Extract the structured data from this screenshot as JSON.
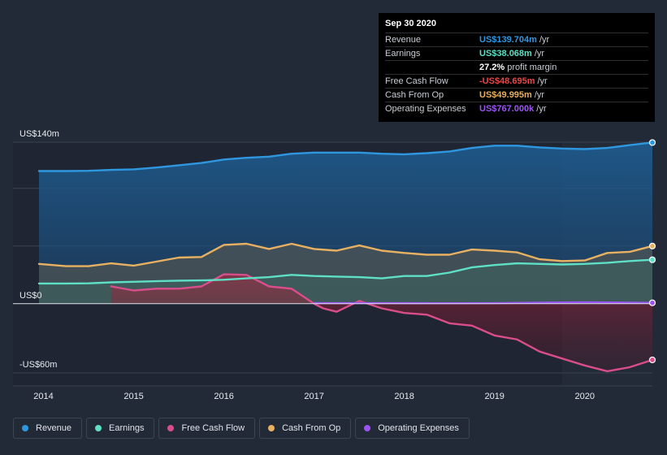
{
  "colors": {
    "revenue": "#2f97e0",
    "earnings": "#5ee0c6",
    "fcf": "#d94d8a",
    "cfo": "#e8b061",
    "opex": "#9a55f0"
  },
  "tooltip": {
    "date": "Sep 30 2020",
    "rows": [
      {
        "name": "Revenue",
        "value": "US$139.704m",
        "unit": "/yr",
        "color": "#2f97e0"
      },
      {
        "name": "Earnings",
        "value": "US$38.068m",
        "unit": "/yr",
        "color": "#5ee0c6"
      },
      {
        "name": "",
        "value": "27.2%",
        "unit": "profit margin",
        "color": "#ffffff"
      },
      {
        "name": "Free Cash Flow",
        "value": "-US$48.695m",
        "unit": "/yr",
        "color": "#ee4444"
      },
      {
        "name": "Cash From Op",
        "value": "US$49.995m",
        "unit": "/yr",
        "color": "#e8b061"
      },
      {
        "name": "Operating Expenses",
        "value": "US$767.000k",
        "unit": "/yr",
        "color": "#9a55f0"
      }
    ]
  },
  "legend": [
    {
      "label": "Revenue",
      "color": "#2f97e0"
    },
    {
      "label": "Earnings",
      "color": "#5ee0c6"
    },
    {
      "label": "Free Cash Flow",
      "color": "#d94d8a"
    },
    {
      "label": "Cash From Op",
      "color": "#e8b061"
    },
    {
      "label": "Operating Expenses",
      "color": "#9a55f0"
    }
  ],
  "chart_data": {
    "type": "area",
    "title": "",
    "xlabel": "",
    "ylabel": "",
    "xlim": [
      2013.95,
      2020.75
    ],
    "ylim": [
      -60,
      140
    ],
    "forecast_start": 2019.75,
    "y_tick_labels": [
      {
        "value": 140,
        "label": "US$140m"
      },
      {
        "value": 0,
        "label": "US$0"
      },
      {
        "value": -60,
        "label": "-US$60m"
      }
    ],
    "x_tick_labels": [
      {
        "value": 2014,
        "label": "2014"
      },
      {
        "value": 2015,
        "label": "2015"
      },
      {
        "value": 2016,
        "label": "2016"
      },
      {
        "value": 2017,
        "label": "2017"
      },
      {
        "value": 2018,
        "label": "2018"
      },
      {
        "value": 2019,
        "label": "2019"
      },
      {
        "value": 2020,
        "label": "2020"
      }
    ],
    "series": [
      {
        "name": "Revenue",
        "key": "revenue",
        "points": [
          [
            2013.95,
            115
          ],
          [
            2014.25,
            115
          ],
          [
            2014.5,
            115.2
          ],
          [
            2014.75,
            116
          ],
          [
            2015,
            116.5
          ],
          [
            2015.25,
            118
          ],
          [
            2015.5,
            120
          ],
          [
            2015.75,
            122
          ],
          [
            2016,
            125
          ],
          [
            2016.25,
            126.5
          ],
          [
            2016.5,
            127.5
          ],
          [
            2016.75,
            130
          ],
          [
            2017,
            131
          ],
          [
            2017.25,
            131
          ],
          [
            2017.5,
            131
          ],
          [
            2017.75,
            130
          ],
          [
            2018,
            129.5
          ],
          [
            2018.25,
            130.5
          ],
          [
            2018.5,
            132
          ],
          [
            2018.75,
            135
          ],
          [
            2019,
            137
          ],
          [
            2019.25,
            137
          ],
          [
            2019.5,
            135.5
          ],
          [
            2019.75,
            134.5
          ],
          [
            2020,
            134
          ],
          [
            2020.25,
            135
          ],
          [
            2020.5,
            137.5
          ],
          [
            2020.75,
            139.7
          ]
        ]
      },
      {
        "name": "Earnings",
        "key": "earnings",
        "points": [
          [
            2013.95,
            17.5
          ],
          [
            2014.25,
            17.5
          ],
          [
            2014.5,
            17.7
          ],
          [
            2014.75,
            18.5
          ],
          [
            2015,
            19
          ],
          [
            2015.25,
            19.5
          ],
          [
            2015.5,
            20
          ],
          [
            2015.75,
            20.2
          ],
          [
            2016,
            20.8
          ],
          [
            2016.25,
            22
          ],
          [
            2016.5,
            23
          ],
          [
            2016.75,
            25
          ],
          [
            2017,
            24
          ],
          [
            2017.25,
            23.5
          ],
          [
            2017.5,
            23
          ],
          [
            2017.75,
            22
          ],
          [
            2018,
            24
          ],
          [
            2018.25,
            24
          ],
          [
            2018.5,
            27
          ],
          [
            2018.75,
            31.5
          ],
          [
            2019,
            33.5
          ],
          [
            2019.25,
            35
          ],
          [
            2019.5,
            34.5
          ],
          [
            2019.75,
            34
          ],
          [
            2020,
            34.5
          ],
          [
            2020.25,
            35.5
          ],
          [
            2020.5,
            37
          ],
          [
            2020.75,
            38.1
          ]
        ]
      },
      {
        "name": "Free Cash Flow",
        "key": "fcf",
        "points": [
          [
            2014.75,
            15
          ],
          [
            2015,
            11.5
          ],
          [
            2015.25,
            13
          ],
          [
            2015.5,
            13
          ],
          [
            2015.75,
            15
          ],
          [
            2016,
            25.5
          ],
          [
            2016.25,
            25
          ],
          [
            2016.5,
            15
          ],
          [
            2016.75,
            13
          ],
          [
            2017,
            0
          ],
          [
            2017.1,
            -4
          ],
          [
            2017.25,
            -7
          ],
          [
            2017.5,
            2.5
          ],
          [
            2017.75,
            -4
          ],
          [
            2018,
            -8
          ],
          [
            2018.25,
            -9.5
          ],
          [
            2018.5,
            -17
          ],
          [
            2018.75,
            -19
          ],
          [
            2019,
            -27.5
          ],
          [
            2019.25,
            -31
          ],
          [
            2019.5,
            -41.5
          ],
          [
            2019.75,
            -47.5
          ],
          [
            2020,
            -53.5
          ],
          [
            2020.25,
            -58.5
          ],
          [
            2020.5,
            -55
          ],
          [
            2020.75,
            -48.7
          ]
        ]
      },
      {
        "name": "Cash From Op",
        "key": "cfo",
        "points": [
          [
            2013.95,
            34.5
          ],
          [
            2014.25,
            32.5
          ],
          [
            2014.5,
            32.5
          ],
          [
            2014.75,
            35
          ],
          [
            2015,
            33
          ],
          [
            2015.25,
            36.5
          ],
          [
            2015.5,
            40
          ],
          [
            2015.75,
            40.5
          ],
          [
            2016,
            51
          ],
          [
            2016.25,
            52
          ],
          [
            2016.5,
            47.5
          ],
          [
            2016.75,
            52
          ],
          [
            2017,
            47.5
          ],
          [
            2017.25,
            46
          ],
          [
            2017.5,
            50.5
          ],
          [
            2017.75,
            46
          ],
          [
            2018,
            44
          ],
          [
            2018.25,
            42.5
          ],
          [
            2018.5,
            42.5
          ],
          [
            2018.75,
            47
          ],
          [
            2019,
            46
          ],
          [
            2019.25,
            44.5
          ],
          [
            2019.5,
            38.5
          ],
          [
            2019.75,
            37
          ],
          [
            2020,
            37.5
          ],
          [
            2020.25,
            44
          ],
          [
            2020.5,
            45
          ],
          [
            2020.75,
            50
          ]
        ]
      },
      {
        "name": "Operating Expenses",
        "key": "opex",
        "points": [
          [
            2017,
            0.5
          ],
          [
            2017.5,
            0.5
          ],
          [
            2018,
            0.5
          ],
          [
            2018.5,
            0.4
          ],
          [
            2019,
            0.5
          ],
          [
            2019.5,
            0.9
          ],
          [
            2020,
            1.3
          ],
          [
            2020.5,
            1.0
          ],
          [
            2020.75,
            0.77
          ]
        ]
      }
    ]
  }
}
